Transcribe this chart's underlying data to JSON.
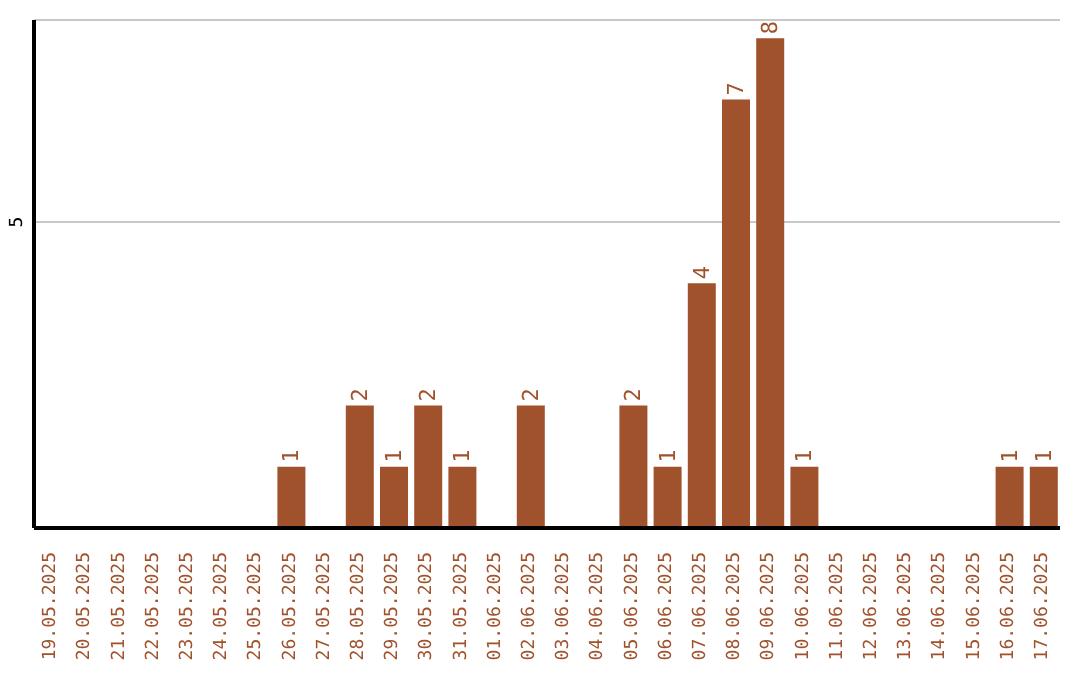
{
  "chart_data": {
    "type": "bar",
    "categories": [
      "19.05.2025",
      "20.05.2025",
      "21.05.2025",
      "22.05.2025",
      "23.05.2025",
      "24.05.2025",
      "25.05.2025",
      "26.05.2025",
      "27.05.2025",
      "28.05.2025",
      "29.05.2025",
      "30.05.2025",
      "31.05.2025",
      "01.06.2025",
      "02.06.2025",
      "03.06.2025",
      "04.06.2025",
      "05.06.2025",
      "06.06.2025",
      "07.06.2025",
      "08.06.2025",
      "09.06.2025",
      "10.06.2025",
      "11.06.2025",
      "12.06.2025",
      "13.06.2025",
      "14.06.2025",
      "15.06.2025",
      "16.06.2025",
      "17.06.2025"
    ],
    "values": [
      0,
      0,
      0,
      0,
      0,
      0,
      0,
      1,
      0,
      2,
      1,
      2,
      1,
      0,
      2,
      0,
      0,
      2,
      1,
      4,
      7,
      8,
      1,
      0,
      0,
      0,
      0,
      0,
      1,
      1
    ],
    "value_labels": [
      null,
      null,
      null,
      null,
      null,
      null,
      null,
      "1",
      null,
      "2",
      "1",
      "2",
      "1",
      null,
      "2",
      null,
      null,
      "2",
      "1",
      "4",
      "7",
      "8",
      "1",
      null,
      null,
      null,
      null,
      null,
      "1",
      "1"
    ],
    "color": "#a0522d",
    "ylim": [
      0,
      8.3
    ],
    "yticks": [
      5
    ],
    "grid": "y"
  }
}
